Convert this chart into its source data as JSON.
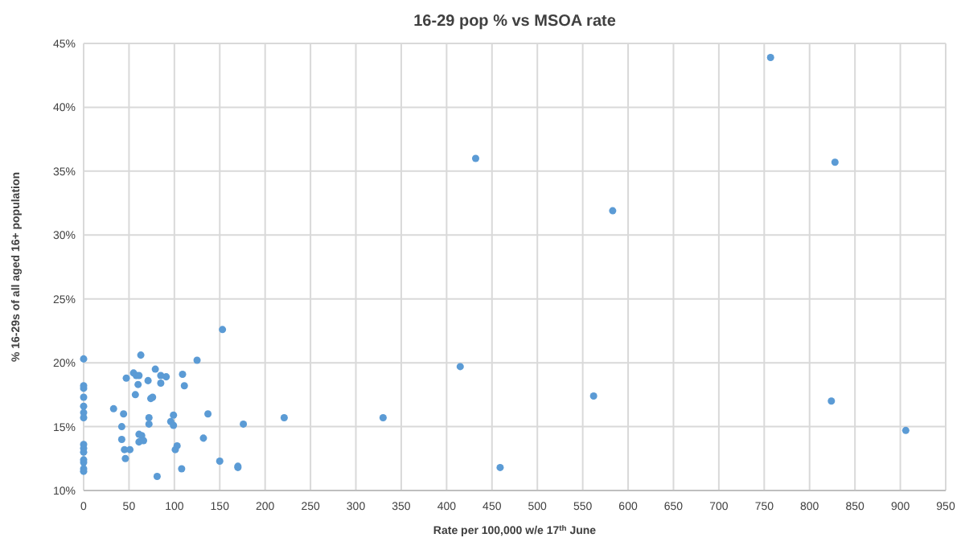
{
  "chart_data": {
    "type": "scatter",
    "title": "16-29 pop % vs MSOA rate",
    "xlabel": "Rate per 100,000 w/e 17$^{th}$ June",
    "ylabel": "% 16-29s of all aged 16+ population",
    "series": [
      {
        "color": "#5b9bd5",
        "x": [
          0,
          0,
          0,
          0,
          0,
          0,
          0,
          0,
          0,
          0,
          0,
          0,
          0,
          0,
          33,
          44,
          47,
          42,
          42,
          45,
          51,
          46,
          55,
          58,
          61,
          57,
          60,
          63,
          61,
          64,
          61,
          66,
          71,
          72,
          72,
          74,
          76,
          79,
          81,
          85,
          85,
          91,
          96,
          99,
          99,
          101,
          103,
          108,
          109,
          111,
          125,
          132,
          137,
          153,
          150,
          170,
          170,
          176,
          221,
          330,
          415,
          432,
          459,
          562,
          583,
          757,
          828,
          824,
          906
        ],
        "values": [
          20.3,
          18.2,
          18.0,
          17.3,
          16.6,
          16.1,
          15.7,
          13.6,
          13.3,
          13.0,
          12.4,
          12.2,
          11.7,
          11.5,
          16.4,
          16.0,
          18.8,
          15.0,
          14.0,
          13.2,
          13.2,
          12.5,
          19.2,
          19.0,
          19.0,
          17.5,
          18.3,
          20.6,
          14.4,
          14.3,
          13.8,
          13.9,
          18.6,
          15.7,
          15.2,
          17.2,
          17.3,
          19.5,
          11.1,
          19.0,
          18.4,
          18.9,
          15.4,
          15.9,
          15.1,
          13.2,
          13.5,
          11.7,
          19.1,
          18.2,
          20.2,
          14.1,
          16.0,
          22.6,
          12.3,
          11.9,
          11.8,
          15.2,
          15.7,
          15.7,
          19.7,
          36.0,
          11.8,
          17.4,
          31.9,
          43.9,
          35.7,
          17.0,
          14.7
        ]
      }
    ],
    "xlim": [
      0,
      950
    ],
    "xticks": [
      0,
      50,
      100,
      150,
      200,
      250,
      300,
      350,
      400,
      450,
      500,
      550,
      600,
      650,
      700,
      750,
      800,
      850,
      900,
      950
    ],
    "ylim": [
      10,
      45
    ],
    "yticks": [
      {
        "value": 10,
        "label": "10%"
      },
      {
        "value": 15,
        "label": "15%"
      },
      {
        "value": 20,
        "label": "20%"
      },
      {
        "value": 25,
        "label": "25%"
      },
      {
        "value": 30,
        "label": "30%"
      },
      {
        "value": 35,
        "label": "35%"
      },
      {
        "value": 40,
        "label": "40%"
      },
      {
        "value": 45,
        "label": "45%"
      }
    ],
    "grid": true,
    "marker": "circle"
  }
}
